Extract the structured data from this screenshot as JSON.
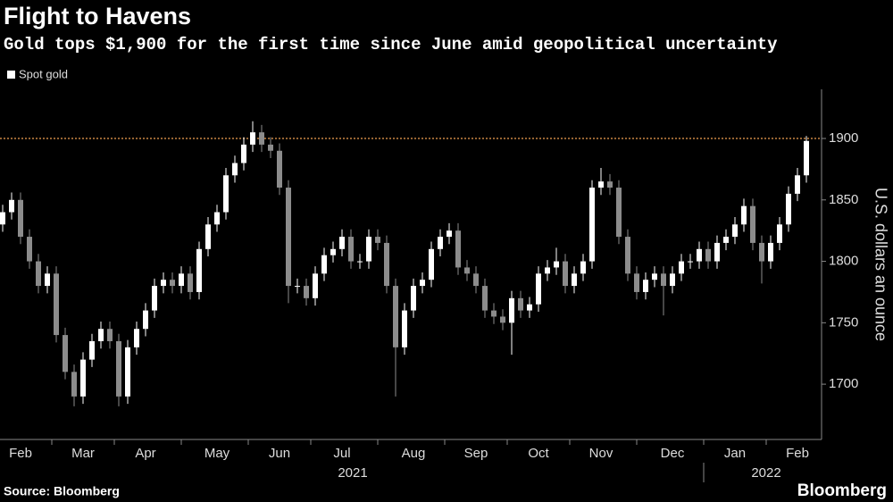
{
  "chart_data": {
    "type": "candlestick",
    "title": "Flight to Havens",
    "subtitle": "Gold tops $1,900 for the first time since June amid geopolitical uncertainty",
    "legend": "Spot gold",
    "y_axis_label": "U.S. dollars an ounce",
    "source": "Source: Bloomberg",
    "brand": "Bloomberg",
    "up_color": "#ffffff",
    "down_color": "#8c8c8c",
    "ylim": [
      1655,
      1940
    ],
    "yticks": [
      1700,
      1750,
      1800,
      1850,
      1900
    ],
    "reference_line": {
      "value": 1900,
      "color": "#f0a050"
    },
    "x_group_labels": [
      "2021",
      "2022"
    ],
    "categories": [
      null,
      null,
      "Feb",
      null,
      null,
      null,
      null,
      null,
      null,
      "Mar",
      null,
      null,
      null,
      null,
      null,
      null,
      "Apr",
      null,
      null,
      null,
      null,
      null,
      null,
      null,
      "May",
      null,
      null,
      null,
      null,
      null,
      null,
      "Jun",
      null,
      null,
      null,
      null,
      null,
      null,
      "Jul",
      null,
      null,
      null,
      null,
      null,
      null,
      null,
      "Aug",
      null,
      null,
      null,
      null,
      null,
      null,
      "Sep",
      null,
      null,
      null,
      null,
      null,
      null,
      "Oct",
      null,
      null,
      null,
      null,
      null,
      null,
      "Nov",
      null,
      null,
      null,
      null,
      null,
      null,
      null,
      "Dec",
      null,
      null,
      null,
      null,
      null,
      null,
      "Jan",
      null,
      null,
      null,
      null,
      null,
      null,
      "Feb",
      null
    ],
    "open": [
      1830,
      1840,
      1850,
      1820,
      1800,
      1780,
      1790,
      1740,
      1710,
      1690,
      1720,
      1735,
      1745,
      1735,
      1690,
      1730,
      1745,
      1760,
      1780,
      1785,
      1780,
      1790,
      1775,
      1810,
      1830,
      1840,
      1870,
      1880,
      1895,
      1905,
      1895,
      1890,
      1860,
      1780,
      1780,
      1770,
      1790,
      1805,
      1810,
      1820,
      1800,
      1800,
      1820,
      1815,
      1780,
      1730,
      1760,
      1780,
      1785,
      1810,
      1820,
      1825,
      1795,
      1790,
      1780,
      1760,
      1755,
      1750,
      1770,
      1760,
      1765,
      1790,
      1795,
      1800,
      1780,
      1790,
      1800,
      1860,
      1865,
      1860,
      1820,
      1790,
      1775,
      1785,
      1790,
      1780,
      1790,
      1800,
      1800,
      1810,
      1800,
      1815,
      1820,
      1830,
      1845,
      1815,
      1800,
      1815,
      1830,
      1855,
      1870
    ],
    "high": [
      1846,
      1856,
      1856,
      1826,
      1806,
      1796,
      1796,
      1746,
      1716,
      1726,
      1741,
      1751,
      1751,
      1741,
      1736,
      1751,
      1766,
      1786,
      1791,
      1791,
      1796,
      1796,
      1816,
      1836,
      1846,
      1876,
      1886,
      1901,
      1914,
      1911,
      1901,
      1896,
      1866,
      1786,
      1786,
      1796,
      1811,
      1816,
      1826,
      1826,
      1806,
      1826,
      1826,
      1821,
      1786,
      1766,
      1786,
      1791,
      1816,
      1826,
      1831,
      1831,
      1801,
      1796,
      1786,
      1766,
      1761,
      1776,
      1776,
      1771,
      1796,
      1801,
      1811,
      1806,
      1796,
      1806,
      1866,
      1876,
      1871,
      1866,
      1826,
      1796,
      1791,
      1796,
      1796,
      1796,
      1806,
      1806,
      1816,
      1816,
      1821,
      1826,
      1836,
      1851,
      1851,
      1821,
      1821,
      1836,
      1861,
      1876,
      1902
    ],
    "low": [
      1824,
      1834,
      1814,
      1794,
      1774,
      1774,
      1734,
      1704,
      1682,
      1684,
      1714,
      1729,
      1729,
      1682,
      1684,
      1724,
      1739,
      1754,
      1774,
      1774,
      1774,
      1769,
      1769,
      1804,
      1824,
      1834,
      1864,
      1874,
      1889,
      1889,
      1884,
      1854,
      1766,
      1774,
      1764,
      1764,
      1784,
      1799,
      1804,
      1794,
      1794,
      1794,
      1809,
      1774,
      1690,
      1724,
      1754,
      1774,
      1779,
      1804,
      1814,
      1789,
      1784,
      1774,
      1754,
      1749,
      1744,
      1724,
      1754,
      1754,
      1759,
      1784,
      1789,
      1774,
      1774,
      1784,
      1794,
      1854,
      1854,
      1814,
      1784,
      1769,
      1769,
      1779,
      1756,
      1774,
      1784,
      1794,
      1794,
      1794,
      1794,
      1809,
      1814,
      1824,
      1809,
      1782,
      1794,
      1809,
      1824,
      1849,
      1864
    ],
    "close": [
      1840,
      1850,
      1820,
      1800,
      1780,
      1790,
      1740,
      1710,
      1690,
      1720,
      1735,
      1745,
      1735,
      1690,
      1730,
      1745,
      1760,
      1780,
      1785,
      1780,
      1790,
      1775,
      1810,
      1830,
      1840,
      1870,
      1880,
      1895,
      1905,
      1895,
      1890,
      1860,
      1780,
      1780,
      1770,
      1790,
      1805,
      1810,
      1820,
      1800,
      1800,
      1820,
      1815,
      1780,
      1730,
      1760,
      1780,
      1785,
      1810,
      1820,
      1825,
      1795,
      1790,
      1780,
      1760,
      1755,
      1750,
      1770,
      1760,
      1765,
      1790,
      1795,
      1800,
      1780,
      1790,
      1800,
      1860,
      1865,
      1860,
      1820,
      1790,
      1775,
      1785,
      1790,
      1780,
      1790,
      1800,
      1800,
      1810,
      1800,
      1815,
      1820,
      1830,
      1845,
      1815,
      1800,
      1815,
      1830,
      1855,
      1870,
      1898
    ]
  }
}
